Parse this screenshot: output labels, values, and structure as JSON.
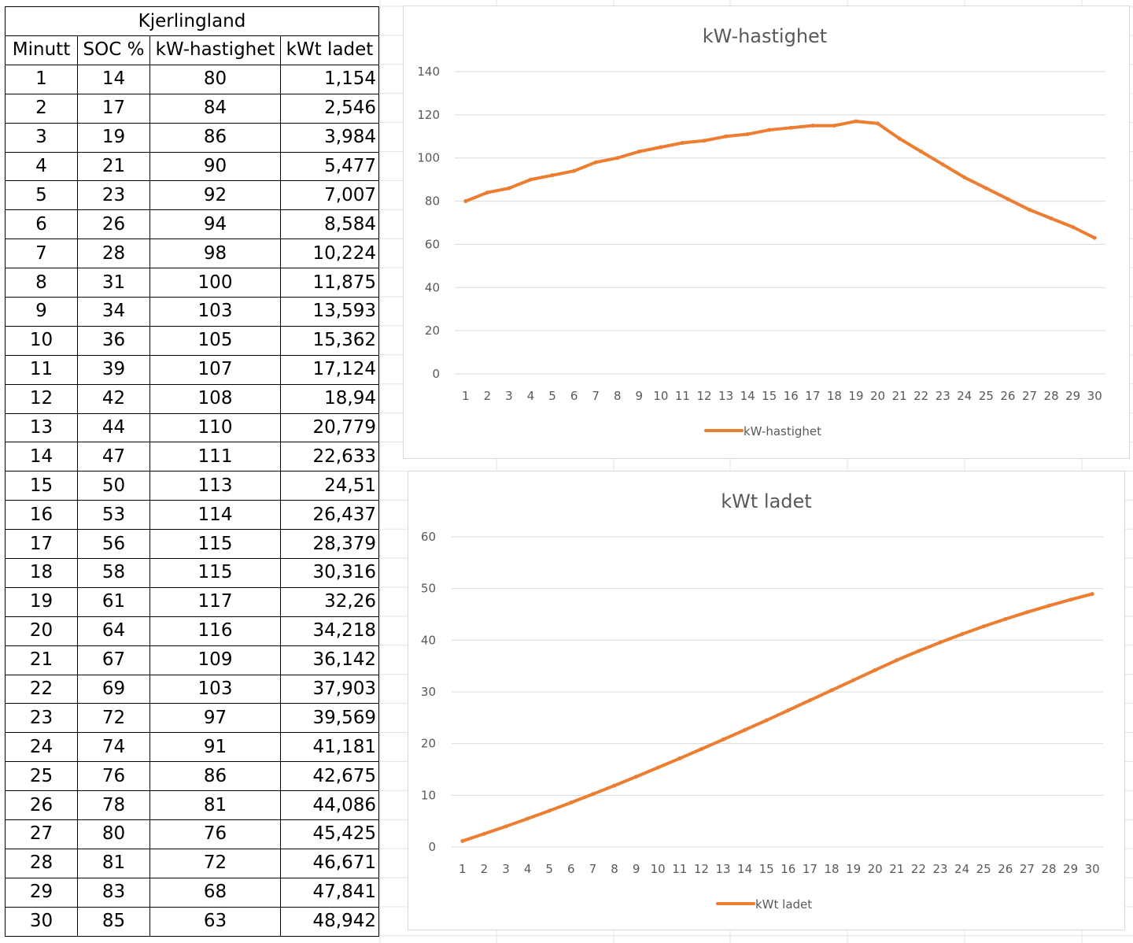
{
  "table": {
    "title": "Kjerlingland",
    "headers": [
      "Minutt",
      "SOC %",
      "kW-hastighet",
      "kWt ladet"
    ],
    "rows": [
      [
        "1",
        "14",
        "80",
        "1,154"
      ],
      [
        "2",
        "17",
        "84",
        "2,546"
      ],
      [
        "3",
        "19",
        "86",
        "3,984"
      ],
      [
        "4",
        "21",
        "90",
        "5,477"
      ],
      [
        "5",
        "23",
        "92",
        "7,007"
      ],
      [
        "6",
        "26",
        "94",
        "8,584"
      ],
      [
        "7",
        "28",
        "98",
        "10,224"
      ],
      [
        "8",
        "31",
        "100",
        "11,875"
      ],
      [
        "9",
        "34",
        "103",
        "13,593"
      ],
      [
        "10",
        "36",
        "105",
        "15,362"
      ],
      [
        "11",
        "39",
        "107",
        "17,124"
      ],
      [
        "12",
        "42",
        "108",
        "18,94"
      ],
      [
        "13",
        "44",
        "110",
        "20,779"
      ],
      [
        "14",
        "47",
        "111",
        "22,633"
      ],
      [
        "15",
        "50",
        "113",
        "24,51"
      ],
      [
        "16",
        "53",
        "114",
        "26,437"
      ],
      [
        "17",
        "56",
        "115",
        "28,379"
      ],
      [
        "18",
        "58",
        "115",
        "30,316"
      ],
      [
        "19",
        "61",
        "117",
        "32,26"
      ],
      [
        "20",
        "64",
        "116",
        "34,218"
      ],
      [
        "21",
        "67",
        "109",
        "36,142"
      ],
      [
        "22",
        "69",
        "103",
        "37,903"
      ],
      [
        "23",
        "72",
        "97",
        "39,569"
      ],
      [
        "24",
        "74",
        "91",
        "41,181"
      ],
      [
        "25",
        "76",
        "86",
        "42,675"
      ],
      [
        "26",
        "78",
        "81",
        "44,086"
      ],
      [
        "27",
        "80",
        "76",
        "45,425"
      ],
      [
        "28",
        "81",
        "72",
        "46,671"
      ],
      [
        "29",
        "83",
        "68",
        "47,841"
      ],
      [
        "30",
        "85",
        "63",
        "48,942"
      ]
    ]
  },
  "colors": {
    "series_line": "#ED7D31",
    "gridline": "#D9D9D9",
    "text_gray": "#595959"
  },
  "chart_data": [
    {
      "type": "line",
      "title": "kW-hastighet",
      "xlabel": "",
      "ylabel": "",
      "categories": [
        "1",
        "2",
        "3",
        "4",
        "5",
        "6",
        "7",
        "8",
        "9",
        "10",
        "11",
        "12",
        "13",
        "14",
        "15",
        "16",
        "17",
        "18",
        "19",
        "20",
        "21",
        "22",
        "23",
        "24",
        "25",
        "26",
        "27",
        "28",
        "29",
        "30"
      ],
      "series": [
        {
          "name": "kW-hastighet",
          "values": [
            80,
            84,
            86,
            90,
            92,
            94,
            98,
            100,
            103,
            105,
            107,
            108,
            110,
            111,
            113,
            114,
            115,
            115,
            117,
            116,
            109,
            103,
            97,
            91,
            86,
            81,
            76,
            72,
            68,
            63
          ]
        }
      ],
      "ylim": [
        0,
        140
      ],
      "yticks": [
        "0",
        "20",
        "40",
        "60",
        "80",
        "100",
        "120",
        "140"
      ],
      "grid": true,
      "legend_position": "bottom"
    },
    {
      "type": "line",
      "title": "kWt ladet",
      "xlabel": "",
      "ylabel": "",
      "categories": [
        "1",
        "2",
        "3",
        "4",
        "5",
        "6",
        "7",
        "8",
        "9",
        "10",
        "11",
        "12",
        "13",
        "14",
        "15",
        "16",
        "17",
        "18",
        "19",
        "20",
        "21",
        "22",
        "23",
        "24",
        "25",
        "26",
        "27",
        "28",
        "29",
        "30"
      ],
      "series": [
        {
          "name": "kWt ladet",
          "values": [
            1.154,
            2.546,
            3.984,
            5.477,
            7.007,
            8.584,
            10.224,
            11.875,
            13.593,
            15.362,
            17.124,
            18.94,
            20.779,
            22.633,
            24.51,
            26.437,
            28.379,
            30.316,
            32.26,
            34.218,
            36.142,
            37.903,
            39.569,
            41.181,
            42.675,
            44.086,
            45.425,
            46.671,
            47.841,
            48.942
          ]
        }
      ],
      "ylim": [
        0,
        60
      ],
      "yticks": [
        "0",
        "10",
        "20",
        "30",
        "40",
        "50",
        "60"
      ],
      "grid": true,
      "legend_position": "bottom"
    }
  ]
}
